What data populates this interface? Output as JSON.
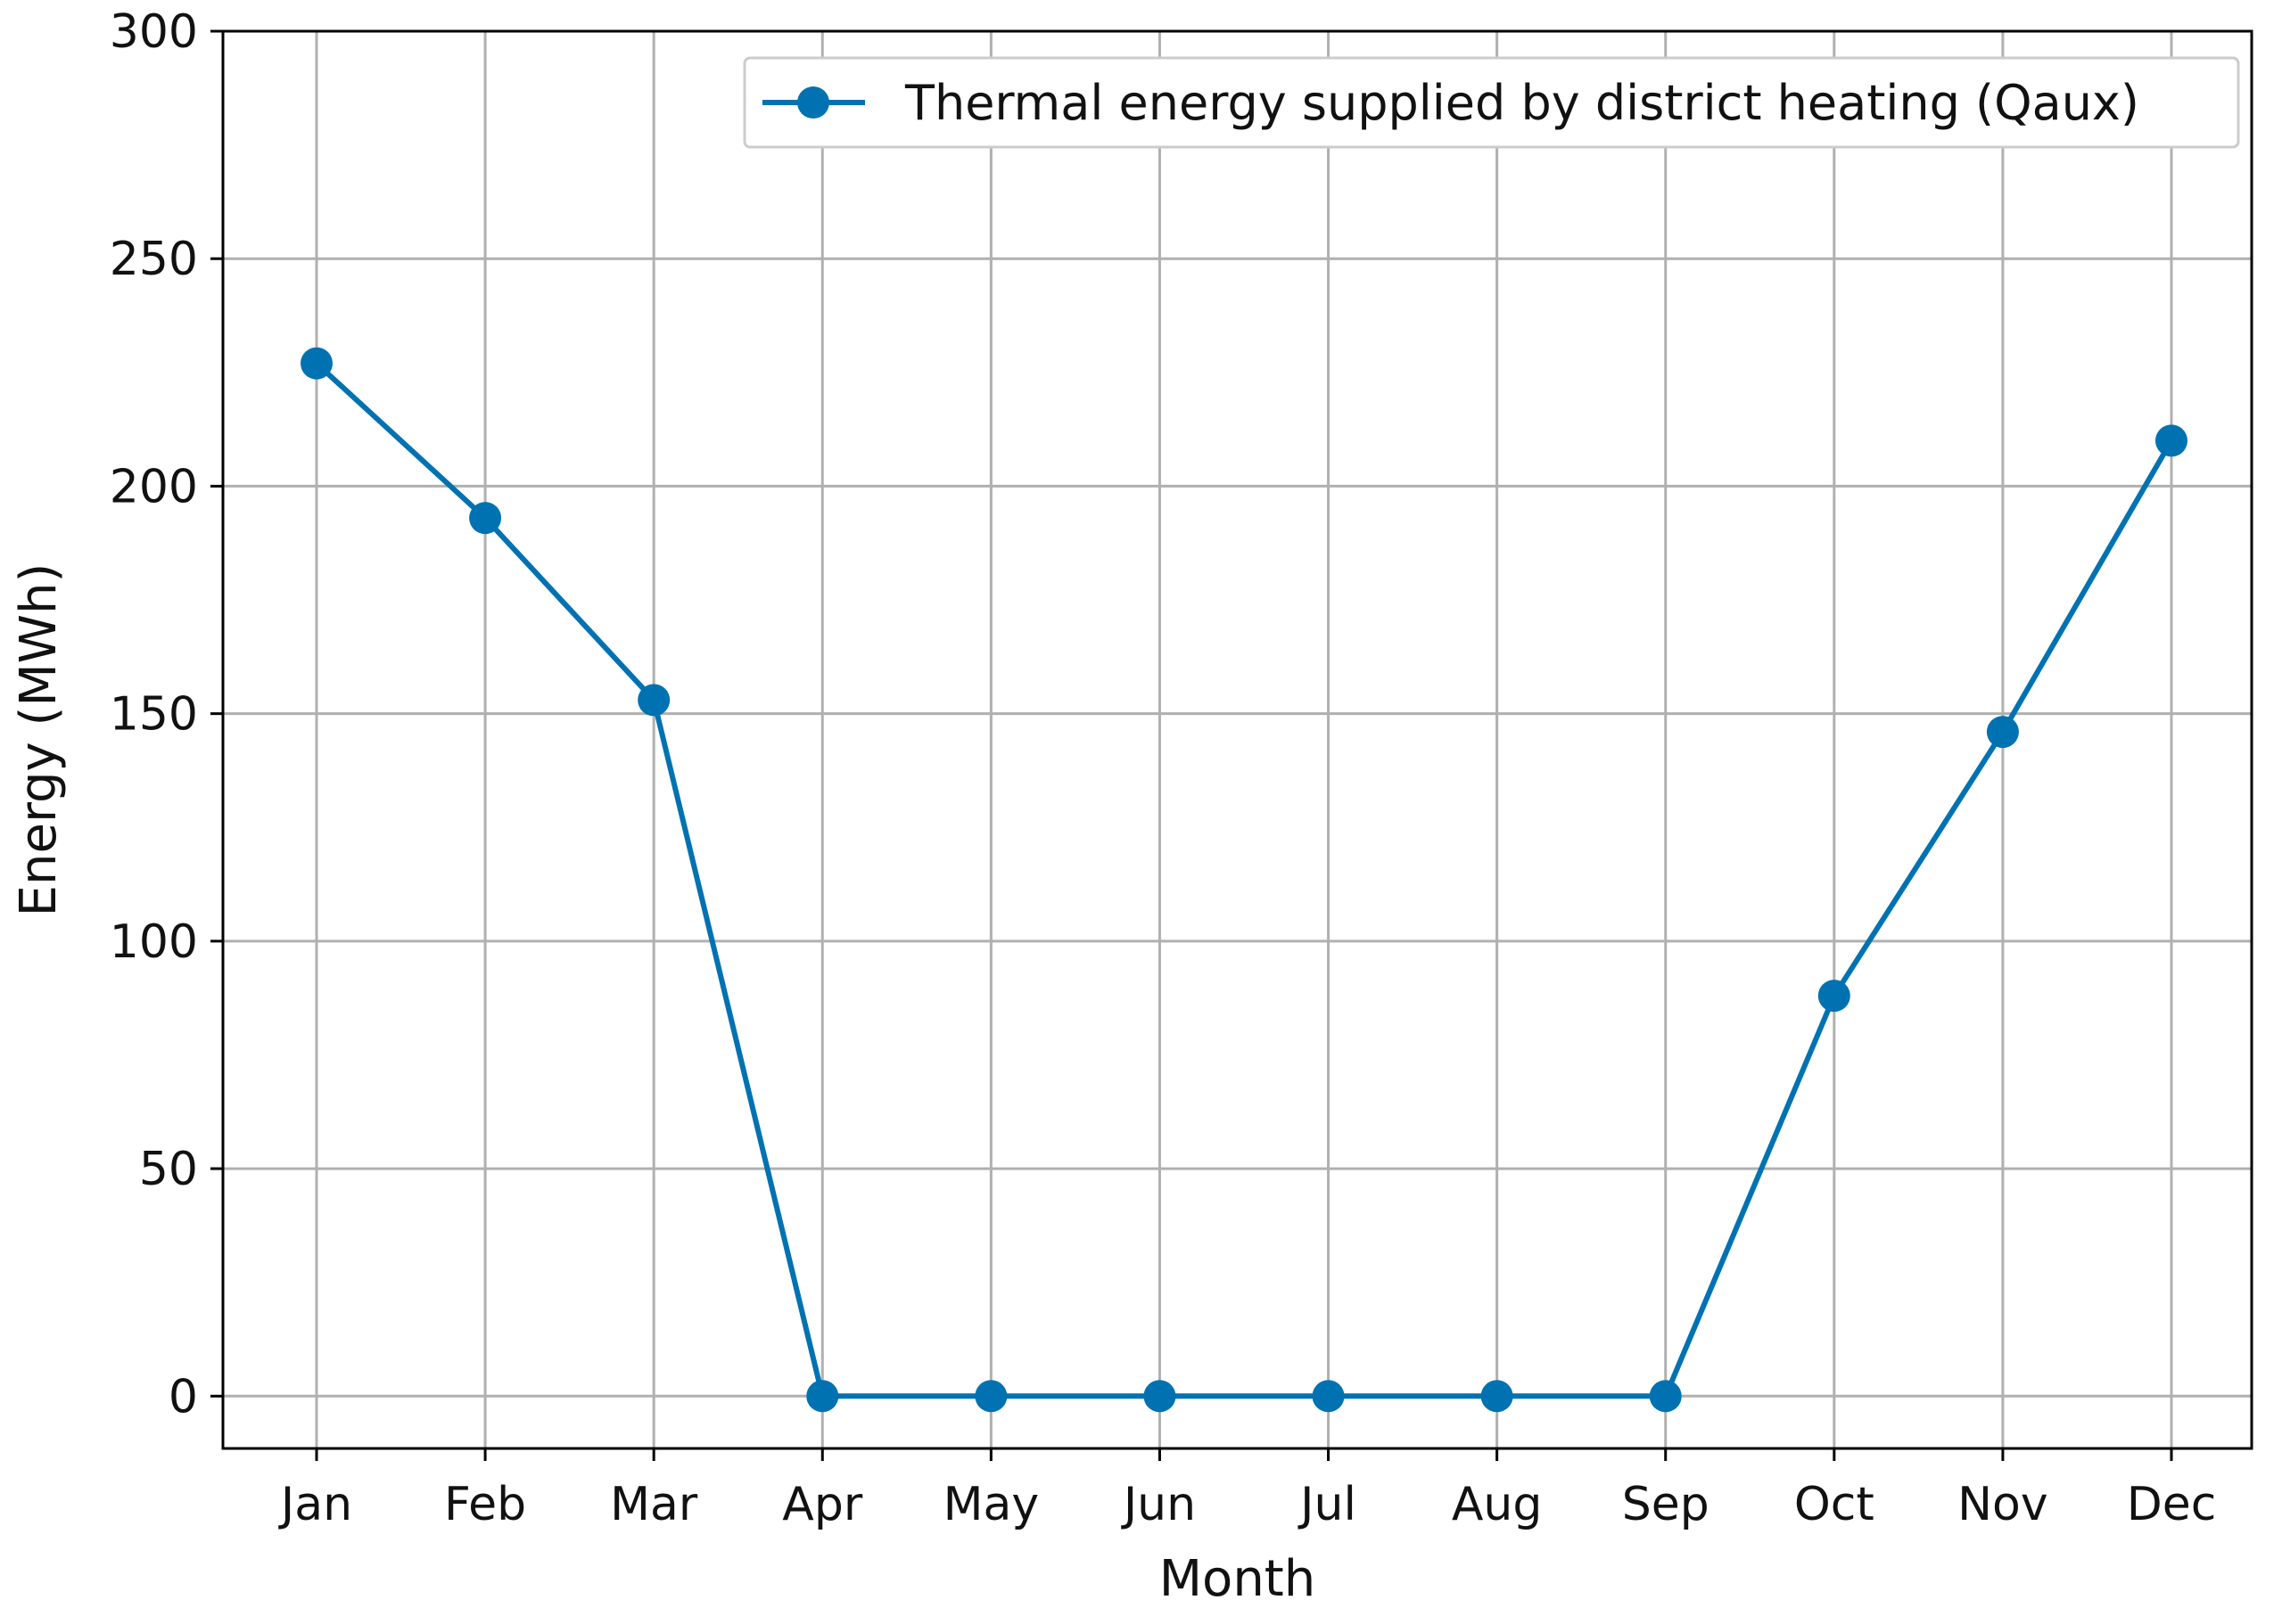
{
  "chart_data": {
    "type": "line",
    "title": "",
    "xlabel": "Month",
    "ylabel": "Energy (MWh)",
    "categories": [
      "Jan",
      "Feb",
      "Mar",
      "Apr",
      "May",
      "Jun",
      "Jul",
      "Aug",
      "Sep",
      "Oct",
      "Nov",
      "Dec"
    ],
    "yticks": [
      "0",
      "50",
      "100",
      "150",
      "200",
      "250",
      "300"
    ],
    "ylim": [
      -11.5,
      300
    ],
    "grid": true,
    "legend_position": "top-right",
    "series": [
      {
        "name": "Thermal energy supplied by district heating (Qaux)",
        "color": "#0072b2",
        "marker": "circle",
        "values": [
          227,
          193,
          153,
          0,
          0,
          0,
          0,
          0,
          0,
          88,
          146,
          210
        ]
      }
    ]
  }
}
